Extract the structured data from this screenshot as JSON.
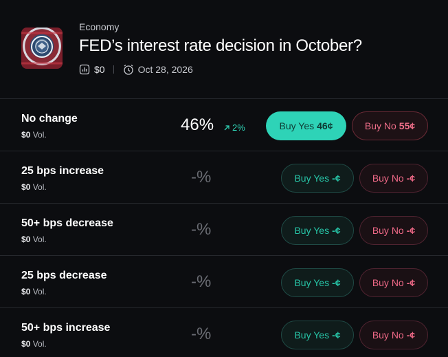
{
  "market": {
    "category": "Economy",
    "title": "FED’s interest rate decision in October?",
    "volume": "$0",
    "date": "Oct 28, 2026"
  },
  "outcomes": [
    {
      "name": "No change",
      "volume_amount": "$0",
      "volume_suffix": "Vol.",
      "percent": "46%",
      "change": "2%",
      "yes_label": "Buy Yes",
      "yes_price": "46¢",
      "no_label": "Buy No",
      "no_price": "55¢"
    },
    {
      "name": "25 bps increase",
      "volume_amount": "$0",
      "volume_suffix": "Vol.",
      "percent": "-%",
      "yes_label": "Buy Yes",
      "yes_price": "-¢",
      "no_label": "Buy No",
      "no_price": "-¢"
    },
    {
      "name": "50+ bps decrease",
      "volume_amount": "$0",
      "volume_suffix": "Vol.",
      "percent": "-%",
      "yes_label": "Buy Yes",
      "yes_price": "-¢",
      "no_label": "Buy No",
      "no_price": "-¢"
    },
    {
      "name": "25 bps decrease",
      "volume_amount": "$0",
      "volume_suffix": "Vol.",
      "percent": "-%",
      "yes_label": "Buy Yes",
      "yes_price": "-¢",
      "no_label": "Buy No",
      "no_price": "-¢"
    },
    {
      "name": "50+ bps increase",
      "volume_amount": "$0",
      "volume_suffix": "Vol.",
      "percent": "-%",
      "yes_label": "Buy Yes",
      "yes_price": "-¢",
      "no_label": "Buy No",
      "no_price": "-¢"
    }
  ],
  "icons": {
    "volume": "bar-chart-icon",
    "date": "alarm-clock-icon",
    "change": "arrow-up-right-icon"
  },
  "colors": {
    "background": "#0c0d10",
    "yes_accent": "#2ed3b7",
    "no_accent": "#f06f8a",
    "positive_change": "#2fd3b5"
  }
}
